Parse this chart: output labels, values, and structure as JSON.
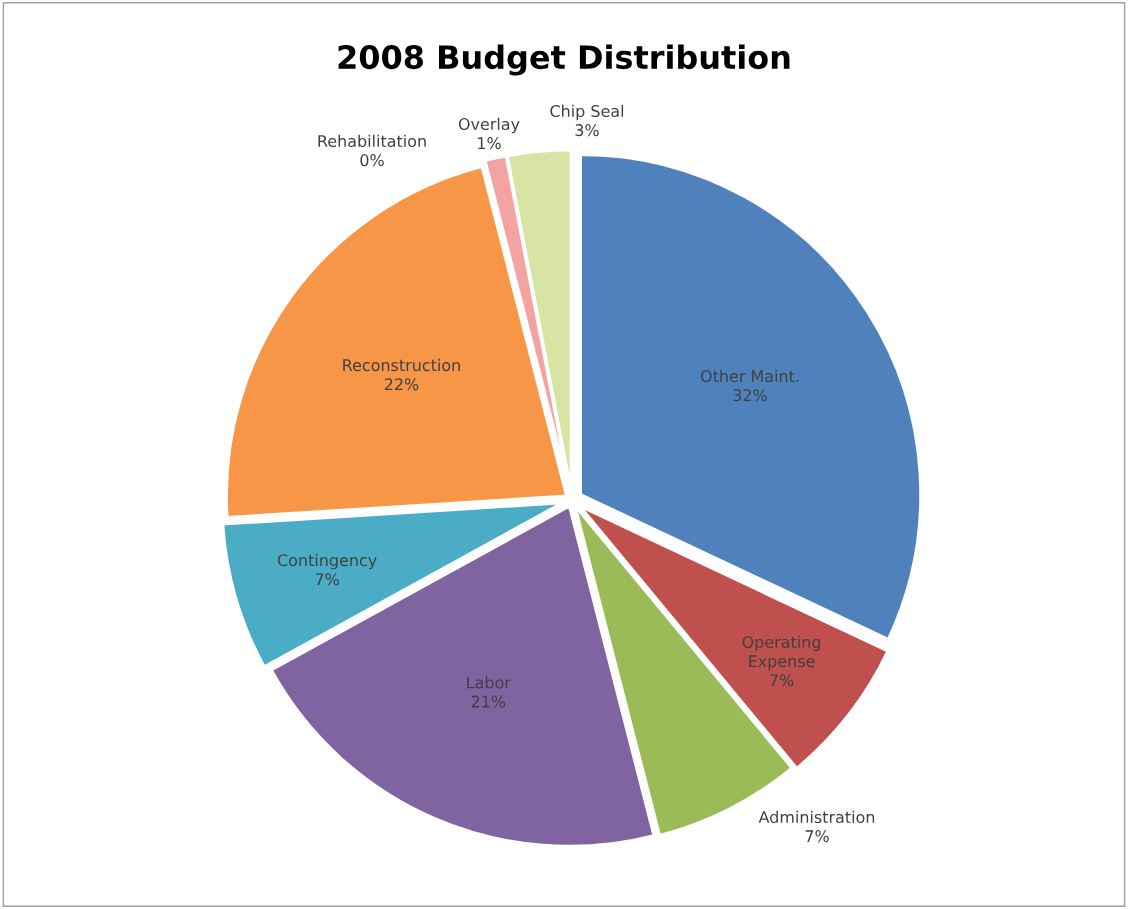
{
  "chart_data": {
    "type": "pie",
    "title": "2008 Budget Distribution",
    "categories": [
      "Other Maint.",
      "Operating Expense",
      "Administration",
      "Labor",
      "Contingency",
      "Reconstruction",
      "Rehabilitation",
      "Overlay",
      "Chip Seal"
    ],
    "values": [
      32,
      7,
      7,
      21,
      7,
      22,
      0,
      1,
      3
    ],
    "value_labels": [
      "32%",
      "7%",
      "7%",
      "21%",
      "7%",
      "22%",
      "0%",
      "1%",
      "3%"
    ],
    "colors": [
      "#4f81bd",
      "#c0504d",
      "#9bbb59",
      "#8064a2",
      "#4bacc6",
      "#f79646",
      "#7f7f7f",
      "#f4a3a3",
      "#d7e4a4"
    ],
    "legend": false
  }
}
